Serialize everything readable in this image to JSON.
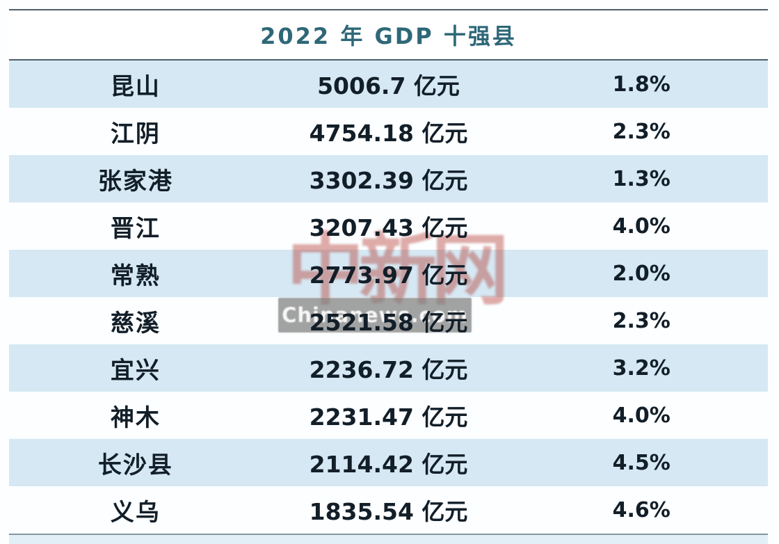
{
  "title": "2022 年 GDP 十强县",
  "watermark": {
    "logo": "中新网",
    "site": "Chinanews.com"
  },
  "colors": {
    "title_text": "#2e6878",
    "row_text": "#121e28",
    "row_blue": "#d5e8f3",
    "row_white": "#fcfeff",
    "rule_dark": "#4e5e66",
    "rule_light": "#8496a0",
    "watermark_red": "#b43a2f",
    "watermark_bar_gray": "#7e7e7e"
  },
  "table": {
    "rows": [
      {
        "name": "昆山",
        "gdp": "5006.7 亿元",
        "growth": "1.8%"
      },
      {
        "name": "江阴",
        "gdp": "4754.18 亿元",
        "growth": "2.3%"
      },
      {
        "name": "张家港",
        "gdp": "3302.39 亿元",
        "growth": "1.3%"
      },
      {
        "name": "晋江",
        "gdp": "3207.43 亿元",
        "growth": "4.0%"
      },
      {
        "name": "常熟",
        "gdp": "2773.97 亿元",
        "growth": "2.0%"
      },
      {
        "name": "慈溪",
        "gdp": "2521.58 亿元",
        "growth": "2.3%"
      },
      {
        "name": "宜兴",
        "gdp": "2236.72 亿元",
        "growth": "3.2%"
      },
      {
        "name": "神木",
        "gdp": "2231.47 亿元",
        "growth": "4.0%"
      },
      {
        "name": "长沙县",
        "gdp": "2114.42 亿元",
        "growth": "4.5%"
      },
      {
        "name": "义乌",
        "gdp": "1835.54 亿元",
        "growth": "4.6%"
      }
    ]
  },
  "chart_data": {
    "type": "table",
    "title": "2022 年 GDP 十强县",
    "unit": "亿元",
    "rows": [
      {
        "region": "昆山",
        "gdp_yi_yuan": 5006.7,
        "growth_pct": 1.8
      },
      {
        "region": "江阴",
        "gdp_yi_yuan": 4754.18,
        "growth_pct": 2.3
      },
      {
        "region": "张家港",
        "gdp_yi_yuan": 3302.39,
        "growth_pct": 1.3
      },
      {
        "region": "晋江",
        "gdp_yi_yuan": 3207.43,
        "growth_pct": 4.0
      },
      {
        "region": "常熟",
        "gdp_yi_yuan": 2773.97,
        "growth_pct": 2.0
      },
      {
        "region": "慈溪",
        "gdp_yi_yuan": 2521.58,
        "growth_pct": 2.3
      },
      {
        "region": "宜兴",
        "gdp_yi_yuan": 2236.72,
        "growth_pct": 3.2
      },
      {
        "region": "神木",
        "gdp_yi_yuan": 2231.47,
        "growth_pct": 4.0
      },
      {
        "region": "长沙县",
        "gdp_yi_yuan": 2114.42,
        "growth_pct": 4.5
      },
      {
        "region": "义乌",
        "gdp_yi_yuan": 1835.54,
        "growth_pct": 4.6
      }
    ],
    "layout": {
      "row_striping": "alternating blue/white, blue first",
      "header_labels_visible": false
    }
  }
}
